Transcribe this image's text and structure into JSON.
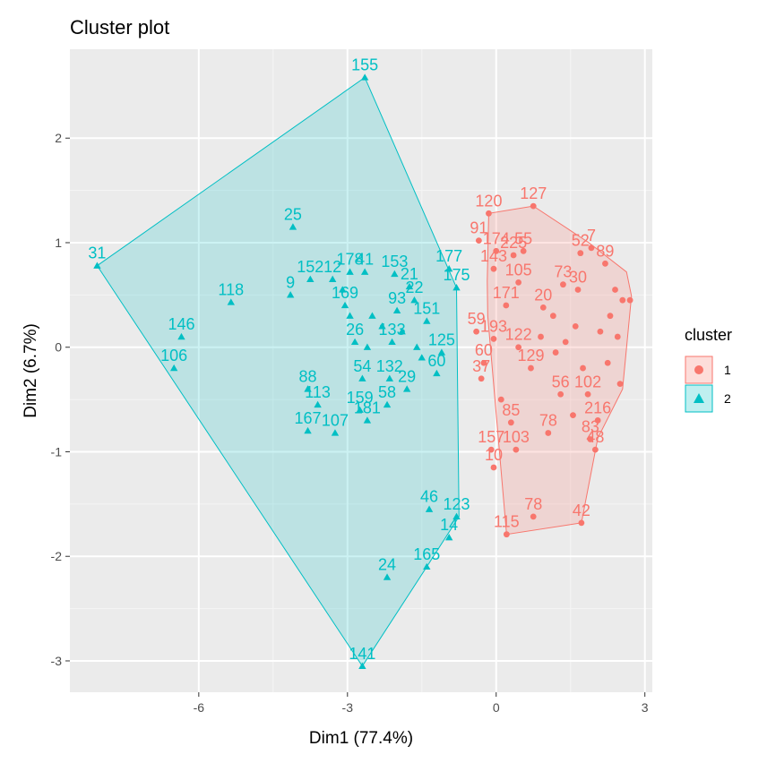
{
  "chart_data": {
    "type": "scatter",
    "title": "Cluster plot",
    "xlabel": "Dim1 (77.4%)",
    "ylabel": "Dim2 (6.7%)",
    "xlim": [
      -8.6,
      3.15
    ],
    "ylim": [
      -3.3,
      2.85
    ],
    "xticks": [
      -6,
      -3,
      0,
      3
    ],
    "yticks": [
      -3,
      -2,
      -1,
      0,
      1,
      2
    ],
    "grid": true,
    "legend": {
      "title": "cluster",
      "position": "right"
    },
    "series": [
      {
        "name": "1",
        "color": "#F8766D",
        "marker": "circle",
        "hull": [
          [
            -0.18,
            0.63
          ],
          [
            -0.17,
            0.3
          ],
          [
            0.21,
            -1.79
          ],
          [
            1.72,
            -1.68
          ],
          [
            2.05,
            -0.87
          ],
          [
            2.55,
            -0.4
          ],
          [
            2.73,
            0.49
          ],
          [
            2.63,
            0.72
          ],
          [
            1.87,
            1.0
          ],
          [
            0.75,
            1.35
          ],
          [
            -0.15,
            1.28
          ]
        ],
        "points": [
          {
            "label": "127",
            "x": 0.75,
            "y": 1.35
          },
          {
            "label": "120",
            "x": -0.15,
            "y": 1.28
          },
          {
            "label": "91",
            "x": -0.35,
            "y": 1.02
          },
          {
            "label": "174",
            "x": 0.0,
            "y": 0.92
          },
          {
            "label": "225",
            "x": 0.35,
            "y": 0.88
          },
          {
            "label": "55",
            "x": 0.55,
            "y": 0.92
          },
          {
            "label": "143",
            "x": -0.05,
            "y": 0.75
          },
          {
            "label": "52",
            "x": 1.7,
            "y": 0.9
          },
          {
            "label": "7",
            "x": 1.92,
            "y": 0.95
          },
          {
            "label": "89",
            "x": 2.2,
            "y": 0.8
          },
          {
            "label": "105",
            "x": 0.45,
            "y": 0.62
          },
          {
            "label": "73",
            "x": 1.35,
            "y": 0.6
          },
          {
            "label": "30",
            "x": 1.65,
            "y": 0.55
          },
          {
            "label": "171",
            "x": 0.2,
            "y": 0.4
          },
          {
            "label": "20",
            "x": 0.95,
            "y": 0.38
          },
          {
            "label": "59",
            "x": -0.4,
            "y": 0.15
          },
          {
            "label": "193",
            "x": -0.05,
            "y": 0.08
          },
          {
            "label": "122",
            "x": 0.45,
            "y": 0.0
          },
          {
            "label": "60",
            "x": -0.25,
            "y": -0.15
          },
          {
            "label": "37",
            "x": -0.3,
            "y": -0.3
          },
          {
            "label": "129",
            "x": 0.7,
            "y": -0.2
          },
          {
            "label": "56",
            "x": 1.3,
            "y": -0.45
          },
          {
            "label": "102",
            "x": 1.85,
            "y": -0.45
          },
          {
            "label": "85",
            "x": 0.3,
            "y": -0.72
          },
          {
            "label": "78",
            "x": 1.05,
            "y": -0.82
          },
          {
            "label": "216",
            "x": 2.05,
            "y": -0.7
          },
          {
            "label": "157",
            "x": -0.1,
            "y": -0.98
          },
          {
            "label": "103",
            "x": 0.4,
            "y": -0.98
          },
          {
            "label": "83",
            "x": 1.9,
            "y": -0.88
          },
          {
            "label": "48",
            "x": 2.0,
            "y": -0.98
          },
          {
            "label": "10",
            "x": -0.05,
            "y": -1.15
          },
          {
            "label": "78",
            "x": 0.75,
            "y": -1.62
          },
          {
            "label": "42",
            "x": 1.72,
            "y": -1.68
          },
          {
            "label": "115",
            "x": 0.21,
            "y": -1.79
          },
          {
            "label": "",
            "x": 2.4,
            "y": 0.55
          },
          {
            "label": "",
            "x": 2.55,
            "y": 0.45
          },
          {
            "label": "",
            "x": 2.7,
            "y": 0.45
          },
          {
            "label": "",
            "x": 2.3,
            "y": 0.3
          },
          {
            "label": "",
            "x": 2.1,
            "y": 0.15
          },
          {
            "label": "",
            "x": 2.45,
            "y": 0.1
          },
          {
            "label": "",
            "x": 1.6,
            "y": 0.2
          },
          {
            "label": "",
            "x": 1.4,
            "y": 0.05
          },
          {
            "label": "",
            "x": 1.2,
            "y": -0.05
          },
          {
            "label": "",
            "x": 0.9,
            "y": 0.1
          },
          {
            "label": "",
            "x": 2.25,
            "y": -0.15
          },
          {
            "label": "",
            "x": 1.75,
            "y": -0.2
          },
          {
            "label": "",
            "x": 2.5,
            "y": -0.35
          },
          {
            "label": "",
            "x": 1.55,
            "y": -0.65
          },
          {
            "label": "",
            "x": 0.1,
            "y": -0.5
          },
          {
            "label": "",
            "x": 1.15,
            "y": 0.3
          }
        ]
      },
      {
        "name": "2",
        "color": "#00BFC4",
        "marker": "triangle",
        "hull": [
          [
            -2.65,
            2.58
          ],
          [
            -0.8,
            0.57
          ],
          [
            -0.75,
            -1.62
          ],
          [
            -1.4,
            -2.1
          ],
          [
            -2.7,
            -3.05
          ],
          [
            -8.05,
            0.78
          ]
        ],
        "points": [
          {
            "label": "155",
            "x": -2.65,
            "y": 2.58
          },
          {
            "label": "25",
            "x": -4.1,
            "y": 1.15
          },
          {
            "label": "31",
            "x": -8.05,
            "y": 0.78
          },
          {
            "label": "118",
            "x": -5.35,
            "y": 0.43
          },
          {
            "label": "9",
            "x": -4.15,
            "y": 0.5
          },
          {
            "label": "152",
            "x": -3.75,
            "y": 0.65
          },
          {
            "label": "12",
            "x": -3.3,
            "y": 0.65
          },
          {
            "label": "178",
            "x": -2.95,
            "y": 0.72
          },
          {
            "label": "41",
            "x": -2.65,
            "y": 0.72
          },
          {
            "label": "153",
            "x": -2.05,
            "y": 0.7
          },
          {
            "label": "21",
            "x": -1.75,
            "y": 0.58
          },
          {
            "label": "22",
            "x": -1.65,
            "y": 0.45
          },
          {
            "label": "177",
            "x": -0.95,
            "y": 0.75
          },
          {
            "label": "175",
            "x": -0.8,
            "y": 0.57
          },
          {
            "label": "146",
            "x": -6.35,
            "y": 0.1
          },
          {
            "label": "106",
            "x": -6.5,
            "y": -0.2
          },
          {
            "label": "169",
            "x": -3.05,
            "y": 0.4
          },
          {
            "label": "93",
            "x": -2.0,
            "y": 0.35
          },
          {
            "label": "151",
            "x": -1.4,
            "y": 0.25
          },
          {
            "label": "26",
            "x": -2.85,
            "y": 0.05
          },
          {
            "label": "133",
            "x": -2.1,
            "y": 0.05
          },
          {
            "label": "125",
            "x": -1.1,
            "y": -0.05
          },
          {
            "label": "88",
            "x": -3.8,
            "y": -0.4
          },
          {
            "label": "54",
            "x": -2.7,
            "y": -0.3
          },
          {
            "label": "132",
            "x": -2.15,
            "y": -0.3
          },
          {
            "label": "29",
            "x": -1.8,
            "y": -0.4
          },
          {
            "label": "60",
            "x": -1.2,
            "y": -0.25
          },
          {
            "label": "113",
            "x": -3.6,
            "y": -0.55
          },
          {
            "label": "159",
            "x": -2.75,
            "y": -0.6
          },
          {
            "label": "58",
            "x": -2.2,
            "y": -0.55
          },
          {
            "label": "167",
            "x": -3.8,
            "y": -0.8
          },
          {
            "label": "107",
            "x": -3.25,
            "y": -0.82
          },
          {
            "label": "181",
            "x": -2.6,
            "y": -0.7
          },
          {
            "label": "46",
            "x": -1.35,
            "y": -1.55
          },
          {
            "label": "123",
            "x": -0.8,
            "y": -1.62
          },
          {
            "label": "14",
            "x": -0.95,
            "y": -1.82
          },
          {
            "label": "165",
            "x": -1.4,
            "y": -2.1
          },
          {
            "label": "24",
            "x": -2.2,
            "y": -2.2
          },
          {
            "label": "141",
            "x": -2.7,
            "y": -3.05
          },
          {
            "label": "",
            "x": -2.5,
            "y": 0.3
          },
          {
            "label": "",
            "x": -2.3,
            "y": 0.2
          },
          {
            "label": "",
            "x": -2.6,
            "y": 0.0
          },
          {
            "label": "",
            "x": -1.9,
            "y": 0.15
          },
          {
            "label": "",
            "x": -1.6,
            "y": 0.0
          },
          {
            "label": "",
            "x": -1.5,
            "y": -0.1
          },
          {
            "label": "",
            "x": -2.95,
            "y": 0.3
          },
          {
            "label": "",
            "x": -3.1,
            "y": 0.55
          }
        ]
      }
    ]
  },
  "legend": {
    "title": "cluster",
    "items": [
      {
        "label": "1",
        "color": "#F8766D",
        "marker": "circle"
      },
      {
        "label": "2",
        "color": "#00BFC4",
        "marker": "triangle"
      }
    ]
  }
}
